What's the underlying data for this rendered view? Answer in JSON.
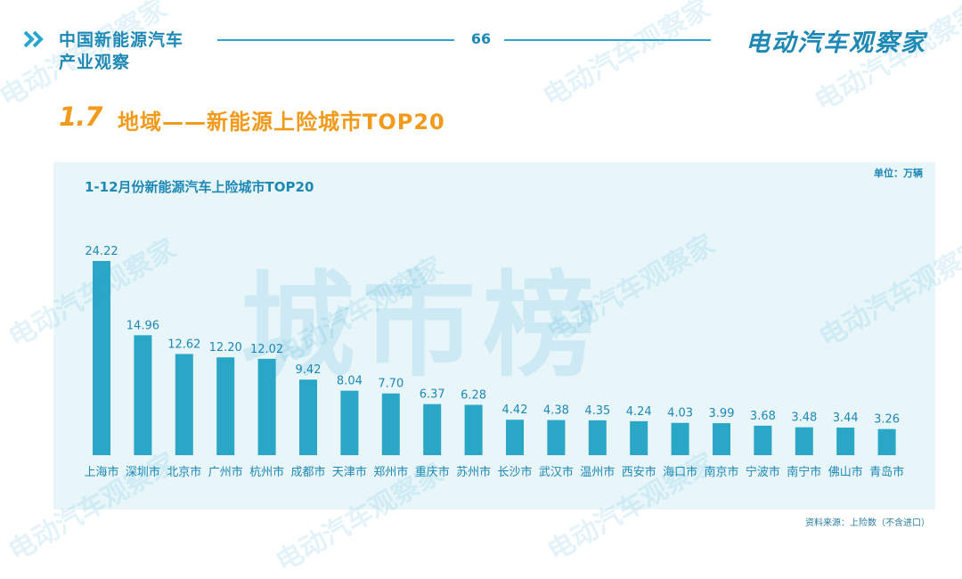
{
  "header": {
    "brand_left_line1": "中国新能源汽车",
    "brand_left_line2": "产业观察",
    "page_number": "66",
    "brand_right": "电动汽车观察家"
  },
  "section": {
    "number": "1.7",
    "title": "地域——新能源上险城市TOP20"
  },
  "chart_panel": {
    "unit": "单位：万辆",
    "background_text": "城市榜",
    "source": "资料来源：上险数（不含进口）"
  },
  "watermark": "电动汽车观察家",
  "colors": {
    "accent": "#1e88b4",
    "bar": "#2aa6c6",
    "section": "#f19a1b",
    "panel": "#e8f6fa"
  },
  "chart_data": {
    "type": "bar",
    "title": "1-12月份新能源汽车上险城市TOP20",
    "categories": [
      "上海市",
      "深圳市",
      "北京市",
      "广州市",
      "杭州市",
      "成都市",
      "天津市",
      "郑州市",
      "重庆市",
      "苏州市",
      "长沙市",
      "武汉市",
      "温州市",
      "西安市",
      "海口市",
      "南京市",
      "宁波市",
      "南宁市",
      "佛山市",
      "青岛市"
    ],
    "values": [
      24.22,
      14.96,
      12.62,
      12.2,
      12.02,
      9.42,
      8.04,
      7.7,
      6.37,
      6.28,
      4.42,
      4.38,
      4.35,
      4.24,
      4.03,
      3.99,
      3.68,
      3.48,
      3.44,
      3.26
    ],
    "value_labels": [
      "24.22",
      "14.96",
      "12.62",
      "12.20",
      "12.02",
      "9.42",
      "8.04",
      "7.70",
      "6.37",
      "6.28",
      "4.42",
      "4.38",
      "4.35",
      "4.24",
      "4.03",
      "3.99",
      "3.68",
      "3.48",
      "3.44",
      "3.26"
    ],
    "xlabel": "",
    "ylabel": "",
    "ylim": [
      0,
      24.22
    ],
    "grid": false,
    "legend": false
  }
}
